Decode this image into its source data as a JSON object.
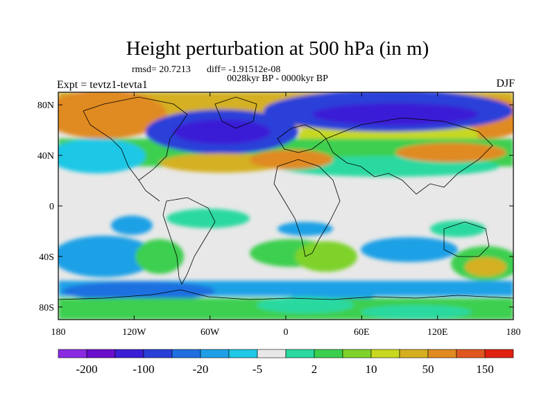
{
  "title": "Height perturbation at 500 hPa (in m)",
  "stats": {
    "rmsd_label": "rmsd= 20.7213",
    "diff_label": "diff= -1.91512e-08"
  },
  "left_label": "Expt = tevtz1-tevta1",
  "center_label": "0028kyr BP - 0000kyr BP",
  "right_label": "DJF",
  "map": {
    "lon_range": [
      -180,
      180
    ],
    "lat_range": [
      -90,
      90
    ],
    "x_ticks": [
      {
        "lon": -180,
        "label": "180"
      },
      {
        "lon": -120,
        "label": "120W"
      },
      {
        "lon": -60,
        "label": "60W"
      },
      {
        "lon": 0,
        "label": "0"
      },
      {
        "lon": 60,
        "label": "60E"
      },
      {
        "lon": 120,
        "label": "120E"
      },
      {
        "lon": 180,
        "label": "180"
      }
    ],
    "y_ticks": [
      {
        "lat": 80,
        "label": "80N"
      },
      {
        "lat": 40,
        "label": "40N"
      },
      {
        "lat": 0,
        "label": "0"
      },
      {
        "lat": -40,
        "label": "40S"
      },
      {
        "lat": -80,
        "label": "80S"
      }
    ]
  },
  "colorbar": {
    "colors": [
      "#8a2be2",
      "#6a0dcc",
      "#3a1fd6",
      "#2a3fd8",
      "#1f6fe0",
      "#1fa0e6",
      "#1fc8e6",
      "#e8e8e8",
      "#2ad9a0",
      "#3ccf4f",
      "#7ed22a",
      "#c8d820",
      "#d4b020",
      "#e08a20",
      "#e05820",
      "#e02010"
    ],
    "labels": [
      {
        "after_index": 0,
        "text": "-200"
      },
      {
        "after_index": 2,
        "text": "-100"
      },
      {
        "after_index": 4,
        "text": "-20"
      },
      {
        "after_index": 6,
        "text": "-5"
      },
      {
        "after_index": 8,
        "text": "2"
      },
      {
        "after_index": 10,
        "text": "10"
      },
      {
        "after_index": 12,
        "text": "50"
      },
      {
        "after_index": 14,
        "text": "150"
      }
    ]
  }
}
